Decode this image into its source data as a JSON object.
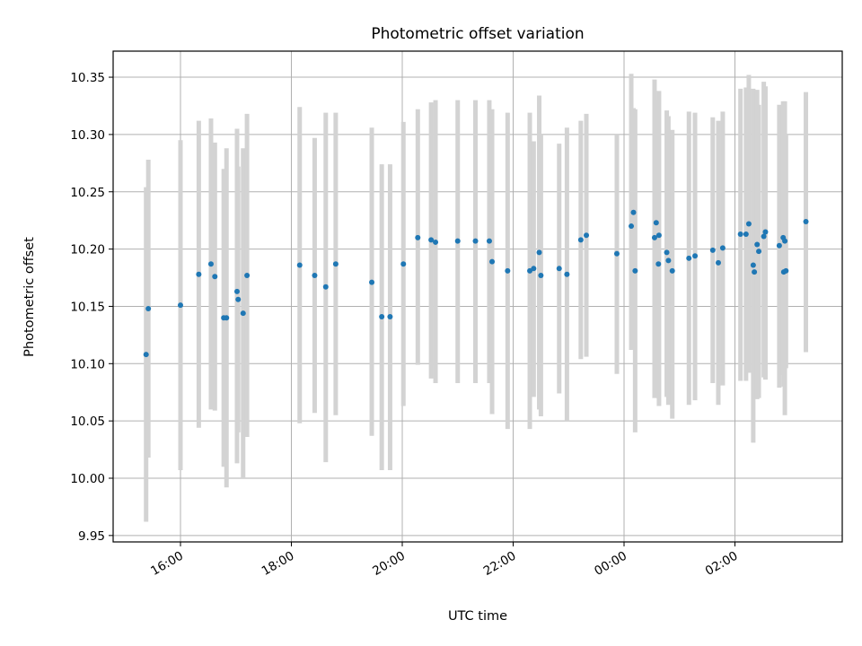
{
  "chart_data": {
    "type": "scatter",
    "title": "Photometric offset variation",
    "xlabel": "UTC time",
    "ylabel": "Photometric offset",
    "x_unit": "hours since 00:00 UTC of first day",
    "xlim": [
      -8.62,
      4.47
    ],
    "ylim": [
      9.944,
      10.373
    ],
    "xticks": [
      {
        "value": -8,
        "label": "16:00"
      },
      {
        "value": -6,
        "label": "18:00"
      },
      {
        "value": -4,
        "label": "20:00"
      },
      {
        "value": -2,
        "label": "22:00"
      },
      {
        "value": 0,
        "label": "00:00"
      },
      {
        "value": 2,
        "label": "02:00"
      }
    ],
    "yticks": [
      {
        "value": 9.95,
        "label": "9.95"
      },
      {
        "value": 10.0,
        "label": "10.00"
      },
      {
        "value": 10.05,
        "label": "10.05"
      },
      {
        "value": 10.1,
        "label": "10.10"
      },
      {
        "value": 10.15,
        "label": "10.15"
      },
      {
        "value": 10.2,
        "label": "10.20"
      },
      {
        "value": 10.25,
        "label": "10.25"
      },
      {
        "value": 10.3,
        "label": "10.30"
      },
      {
        "value": 10.35,
        "label": "10.35"
      }
    ],
    "grid": true,
    "point_color": "#1f77b4",
    "errorbar_color": "#d3d3d3",
    "points": [
      {
        "x": -8.62,
        "y": 10.108,
        "lo": 9.962,
        "hi": 10.254
      },
      {
        "x": -8.58,
        "y": 10.148,
        "lo": 10.018,
        "hi": 10.278
      },
      {
        "x": -8.0,
        "y": 10.151,
        "lo": 10.007,
        "hi": 10.295
      },
      {
        "x": -7.67,
        "y": 10.178,
        "lo": 10.044,
        "hi": 10.312
      },
      {
        "x": -7.45,
        "y": 10.187,
        "lo": 10.06,
        "hi": 10.314
      },
      {
        "x": -7.38,
        "y": 10.176,
        "lo": 10.059,
        "hi": 10.293
      },
      {
        "x": -7.22,
        "y": 10.14,
        "lo": 10.01,
        "hi": 10.27
      },
      {
        "x": -7.17,
        "y": 10.14,
        "lo": 9.992,
        "hi": 10.288
      },
      {
        "x": -6.98,
        "y": 10.163,
        "lo": 10.013,
        "hi": 10.305
      },
      {
        "x": -6.96,
        "y": 10.156,
        "lo": 10.04,
        "hi": 10.272
      },
      {
        "x": -6.87,
        "y": 10.144,
        "lo": 10.0,
        "hi": 10.288
      },
      {
        "x": -6.8,
        "y": 10.177,
        "lo": 10.036,
        "hi": 10.318
      },
      {
        "x": -5.85,
        "y": 10.186,
        "lo": 10.048,
        "hi": 10.324
      },
      {
        "x": -5.58,
        "y": 10.177,
        "lo": 10.057,
        "hi": 10.297
      },
      {
        "x": -5.38,
        "y": 10.167,
        "lo": 10.014,
        "hi": 10.319
      },
      {
        "x": -5.2,
        "y": 10.187,
        "lo": 10.055,
        "hi": 10.319
      },
      {
        "x": -4.55,
        "y": 10.171,
        "lo": 10.037,
        "hi": 10.306
      },
      {
        "x": -4.37,
        "y": 10.141,
        "lo": 10.007,
        "hi": 10.274
      },
      {
        "x": -4.22,
        "y": 10.141,
        "lo": 10.007,
        "hi": 10.274
      },
      {
        "x": -3.98,
        "y": 10.187,
        "lo": 10.063,
        "hi": 10.311
      },
      {
        "x": -3.72,
        "y": 10.21,
        "lo": 10.099,
        "hi": 10.322
      },
      {
        "x": -3.48,
        "y": 10.208,
        "lo": 10.087,
        "hi": 10.328
      },
      {
        "x": -3.4,
        "y": 10.206,
        "lo": 10.083,
        "hi": 10.33
      },
      {
        "x": -3.0,
        "y": 10.207,
        "lo": 10.083,
        "hi": 10.33
      },
      {
        "x": -2.68,
        "y": 10.207,
        "lo": 10.083,
        "hi": 10.33
      },
      {
        "x": -2.43,
        "y": 10.207,
        "lo": 10.083,
        "hi": 10.33
      },
      {
        "x": -2.38,
        "y": 10.189,
        "lo": 10.056,
        "hi": 10.322
      },
      {
        "x": -2.1,
        "y": 10.181,
        "lo": 10.043,
        "hi": 10.319
      },
      {
        "x": -1.7,
        "y": 10.181,
        "lo": 10.043,
        "hi": 10.319
      },
      {
        "x": -1.63,
        "y": 10.183,
        "lo": 10.071,
        "hi": 10.294
      },
      {
        "x": -1.53,
        "y": 10.197,
        "lo": 10.06,
        "hi": 10.334
      },
      {
        "x": -1.5,
        "y": 10.177,
        "lo": 10.054,
        "hi": 10.3
      },
      {
        "x": -1.17,
        "y": 10.183,
        "lo": 10.074,
        "hi": 10.292
      },
      {
        "x": -1.03,
        "y": 10.178,
        "lo": 10.05,
        "hi": 10.306
      },
      {
        "x": -0.78,
        "y": 10.208,
        "lo": 10.104,
        "hi": 10.312
      },
      {
        "x": -0.68,
        "y": 10.212,
        "lo": 10.106,
        "hi": 10.318
      },
      {
        "x": -0.13,
        "y": 10.196,
        "lo": 10.091,
        "hi": 10.3
      },
      {
        "x": 0.13,
        "y": 10.22,
        "lo": 10.112,
        "hi": 10.353
      },
      {
        "x": 0.17,
        "y": 10.232,
        "lo": 10.141,
        "hi": 10.323
      },
      {
        "x": 0.2,
        "y": 10.181,
        "lo": 10.04,
        "hi": 10.322
      },
      {
        "x": 0.55,
        "y": 10.21,
        "lo": 10.07,
        "hi": 10.348
      },
      {
        "x": 0.58,
        "y": 10.223,
        "lo": 10.116,
        "hi": 10.33
      },
      {
        "x": 0.62,
        "y": 10.187,
        "lo": 10.07,
        "hi": 10.32
      },
      {
        "x": 0.63,
        "y": 10.212,
        "lo": 10.063,
        "hi": 10.338
      },
      {
        "x": 0.77,
        "y": 10.197,
        "lo": 10.071,
        "hi": 10.321
      },
      {
        "x": 0.8,
        "y": 10.19,
        "lo": 10.064,
        "hi": 10.316
      },
      {
        "x": 0.87,
        "y": 10.181,
        "lo": 10.052,
        "hi": 10.304
      },
      {
        "x": 1.17,
        "y": 10.192,
        "lo": 10.064,
        "hi": 10.32
      },
      {
        "x": 1.28,
        "y": 10.194,
        "lo": 10.068,
        "hi": 10.319
      },
      {
        "x": 1.6,
        "y": 10.199,
        "lo": 10.083,
        "hi": 10.315
      },
      {
        "x": 1.7,
        "y": 10.188,
        "lo": 10.064,
        "hi": 10.312
      },
      {
        "x": 1.78,
        "y": 10.201,
        "lo": 10.081,
        "hi": 10.32
      },
      {
        "x": 2.1,
        "y": 10.213,
        "lo": 10.085,
        "hi": 10.34
      },
      {
        "x": 2.2,
        "y": 10.213,
        "lo": 10.085,
        "hi": 10.341
      },
      {
        "x": 2.25,
        "y": 10.222,
        "lo": 10.092,
        "hi": 10.352
      },
      {
        "x": 2.33,
        "y": 10.186,
        "lo": 10.031,
        "hi": 10.34
      },
      {
        "x": 2.35,
        "y": 10.18,
        "lo": 10.08,
        "hi": 10.3
      },
      {
        "x": 2.4,
        "y": 10.204,
        "lo": 10.069,
        "hi": 10.339
      },
      {
        "x": 2.43,
        "y": 10.198,
        "lo": 10.07,
        "hi": 10.326
      },
      {
        "x": 2.52,
        "y": 10.211,
        "lo": 10.088,
        "hi": 10.346
      },
      {
        "x": 2.55,
        "y": 10.215,
        "lo": 10.086,
        "hi": 10.342
      },
      {
        "x": 2.8,
        "y": 10.203,
        "lo": 10.079,
        "hi": 10.326
      },
      {
        "x": 2.87,
        "y": 10.21,
        "lo": 10.09,
        "hi": 10.329
      },
      {
        "x": 2.88,
        "y": 10.18,
        "lo": 10.08,
        "hi": 10.3
      },
      {
        "x": 2.9,
        "y": 10.207,
        "lo": 10.055,
        "hi": 10.329
      },
      {
        "x": 2.92,
        "y": 10.181,
        "lo": 10.096,
        "hi": 10.3
      },
      {
        "x": 3.28,
        "y": 10.224,
        "lo": 10.11,
        "hi": 10.337
      }
    ]
  }
}
